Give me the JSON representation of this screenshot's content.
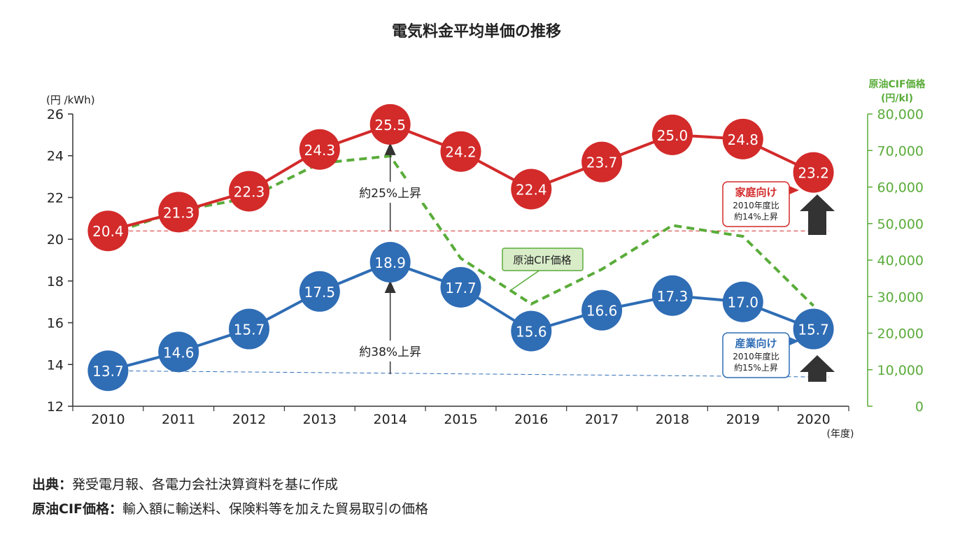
{
  "chart_data": {
    "type": "line",
    "title": "電気料金平均単価の推移",
    "x": [
      "2010",
      "2011",
      "2012",
      "2013",
      "2014",
      "2015",
      "2016",
      "2017",
      "2018",
      "2019",
      "2020"
    ],
    "xlabel_unit": "(年度)",
    "y_left": {
      "label": "(円 /kWh)",
      "range": [
        12,
        26
      ],
      "ticks": [
        12,
        14,
        16,
        18,
        20,
        22,
        24,
        26
      ]
    },
    "y_right": {
      "label_line1": "原油CIF価格",
      "label_line2": "(円/kl)",
      "range": [
        0,
        80000
      ],
      "ticks": [
        0,
        10000,
        20000,
        30000,
        40000,
        50000,
        60000,
        70000,
        80000
      ],
      "tick_labels": [
        "0",
        "10,000",
        "20,000",
        "30,000",
        "40,000",
        "50,000",
        "60,000",
        "70,000",
        "80,000"
      ]
    },
    "series": [
      {
        "name": "家庭向け",
        "axis": "left",
        "color": "#d32a2a",
        "values": [
          20.4,
          21.3,
          22.3,
          24.3,
          25.5,
          24.2,
          22.4,
          23.7,
          25.0,
          24.8,
          23.2
        ],
        "labels": [
          "20.4",
          "21.3",
          "22.3",
          "24.3",
          "25.5",
          "24.2",
          "22.4",
          "23.7",
          "25.0",
          "24.8",
          "23.2"
        ]
      },
      {
        "name": "産業向け",
        "axis": "left",
        "color": "#2f6db5",
        "values": [
          13.7,
          14.6,
          15.7,
          17.5,
          18.9,
          17.7,
          15.6,
          16.6,
          17.3,
          17.0,
          15.7
        ],
        "labels": [
          "13.7",
          "14.6",
          "15.7",
          "17.5",
          "18.9",
          "17.7",
          "15.6",
          "16.6",
          "17.3",
          "17.0",
          "15.7"
        ]
      },
      {
        "name": "原油CIF価格",
        "axis": "right",
        "color": "#5aac3a",
        "style": "dashed",
        "values": [
          47000,
          53500,
          57000,
          66500,
          68500,
          40500,
          28000,
          37500,
          49500,
          46500,
          27500
        ]
      }
    ],
    "annotations": {
      "household_rise_2014": "約25%上昇",
      "industrial_rise_2014": "約38%上昇",
      "crude_label": "原油CIF価格",
      "household_box": {
        "title": "家庭向け",
        "line1": "2010年度比",
        "line2": "約14%上昇"
      },
      "industrial_box": {
        "title": "産業向け",
        "line1": "2010年度比",
        "line2": "約15%上昇"
      }
    },
    "grid": false
  },
  "notes": [
    {
      "key": "出典：",
      "text": "発受電月報、各電力会社決算資料を基に作成"
    },
    {
      "key": "原油CIF価格：",
      "text": "輸入額に輸送料、保険料等を加えた貿易取引の価格"
    }
  ]
}
